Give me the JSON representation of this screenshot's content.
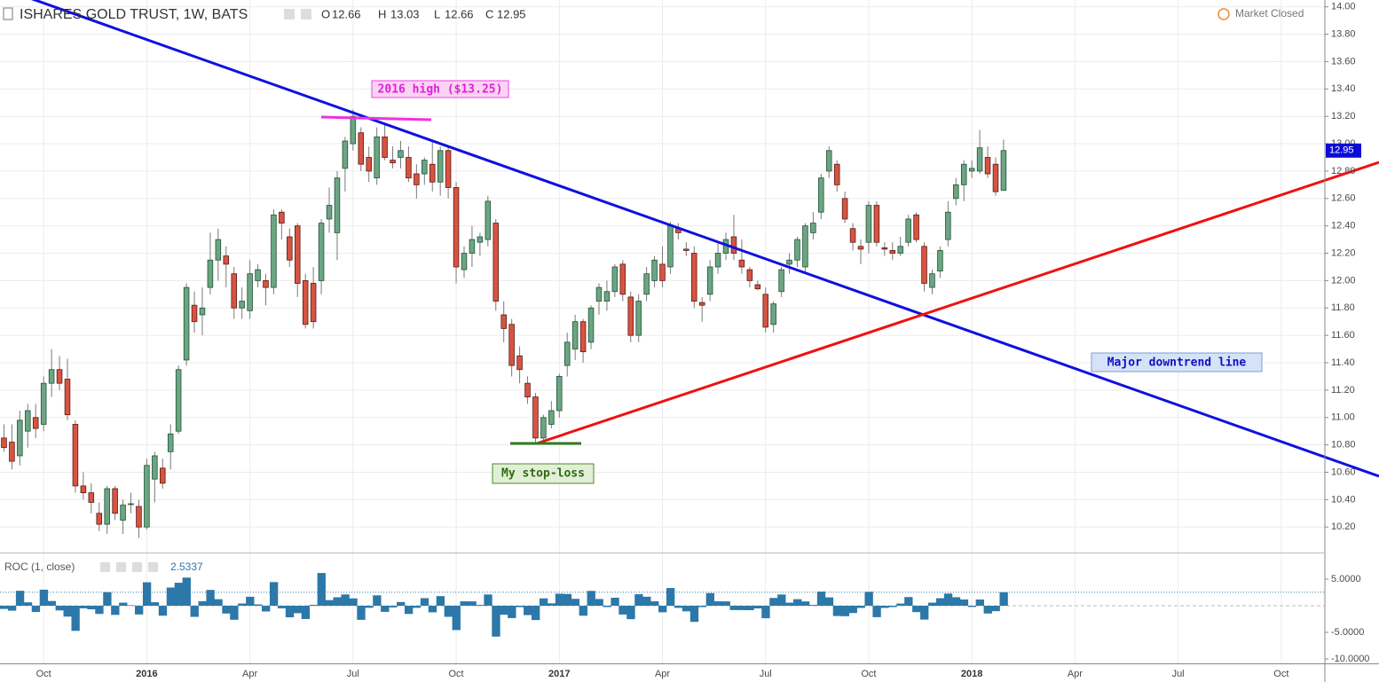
{
  "chart_data": [
    {
      "type": "candlestick",
      "title": "ISHARES GOLD TRUST, 1W, BATS",
      "market_status": "Market Closed",
      "ohlc_labels": [
        "O",
        "H",
        "L",
        "C"
      ],
      "annotations": [
        "2016 high ($13.25)",
        "My stop-loss",
        "Major downtrend line"
      ],
      "up_color": "#6ba583",
      "down_color": "#d75442",
      "grid": true,
      "ylim": [
        10.02,
        14.05
      ],
      "yticks": [
        {
          "value": 10.2,
          "label": "10.20"
        },
        {
          "value": 10.4,
          "label": "10.40"
        },
        {
          "value": 10.6,
          "label": "10.60"
        },
        {
          "value": 10.8,
          "label": "10.80"
        },
        {
          "value": 11,
          "label": "11.00"
        },
        {
          "value": 11.2,
          "label": "11.20"
        },
        {
          "value": 11.4,
          "label": "11.40"
        },
        {
          "value": 11.6,
          "label": "11.60"
        },
        {
          "value": 11.8,
          "label": "11.80"
        },
        {
          "value": 12,
          "label": "12.00"
        },
        {
          "value": 12.2,
          "label": "12.20"
        },
        {
          "value": 12.4,
          "label": "12.40"
        },
        {
          "value": 12.6,
          "label": "12.60"
        },
        {
          "value": 12.8,
          "label": "12.80"
        },
        {
          "value": 13,
          "label": "13.00"
        },
        {
          "value": 13.2,
          "label": "13.20"
        },
        {
          "value": 13.4,
          "label": "13.40"
        },
        {
          "value": 13.6,
          "label": "13.60"
        },
        {
          "value": 13.8,
          "label": "13.80"
        },
        {
          "value": 14,
          "label": "14.00"
        }
      ],
      "categories": [
        null,
        null,
        null,
        null,
        null,
        "Oct",
        null,
        null,
        null,
        null,
        null,
        null,
        null,
        null,
        null,
        null,
        null,
        null,
        "2016",
        null,
        null,
        null,
        null,
        null,
        null,
        null,
        null,
        null,
        null,
        null,
        null,
        "Apr",
        null,
        null,
        null,
        null,
        null,
        null,
        null,
        null,
        null,
        null,
        null,
        null,
        "Jul",
        null,
        null,
        null,
        null,
        null,
        null,
        null,
        null,
        null,
        null,
        null,
        null,
        "Oct",
        null,
        null,
        null,
        null,
        null,
        null,
        null,
        null,
        null,
        null,
        null,
        null,
        "2017",
        null,
        null,
        null,
        null,
        null,
        null,
        null,
        null,
        null,
        null,
        null,
        null,
        "Apr",
        null,
        null,
        null,
        null,
        null,
        null,
        null,
        null,
        null,
        null,
        null,
        null,
        "Jul",
        null,
        null,
        null,
        null,
        null,
        null,
        null,
        null,
        null,
        null,
        null,
        null,
        "Oct",
        null,
        null,
        null,
        null,
        null,
        null,
        null,
        null,
        null,
        null,
        null,
        null,
        "2018",
        null,
        null,
        null,
        null,
        null,
        null,
        null,
        null,
        null,
        null,
        null,
        null,
        "Apr",
        null,
        null,
        null,
        null,
        null,
        null,
        null,
        null,
        null,
        null,
        null,
        null,
        "Jul",
        null,
        null,
        null,
        null,
        null,
        null,
        null,
        null,
        null,
        null,
        null,
        null,
        "Oct",
        null,
        null,
        null,
        null,
        null
      ],
      "ohlc": [
        [
          10.85,
          10.95,
          10.75,
          10.78
        ],
        [
          10.82,
          10.95,
          10.62,
          10.68
        ],
        [
          10.72,
          11.05,
          10.65,
          10.98
        ],
        [
          10.9,
          11.1,
          10.78,
          11.05
        ],
        [
          11.0,
          11.1,
          10.85,
          10.92
        ],
        [
          10.95,
          11.3,
          10.9,
          11.25
        ],
        [
          11.25,
          11.5,
          11.15,
          11.35
        ],
        [
          11.35,
          11.45,
          11.2,
          11.25
        ],
        [
          11.28,
          11.43,
          10.98,
          11.02
        ],
        [
          10.95,
          10.98,
          10.45,
          10.5
        ],
        [
          10.5,
          10.6,
          10.4,
          10.45
        ],
        [
          10.45,
          10.52,
          10.3,
          10.38
        ],
        [
          10.3,
          10.38,
          10.17,
          10.22
        ],
        [
          10.22,
          10.5,
          10.15,
          10.48
        ],
        [
          10.48,
          10.5,
          10.25,
          10.3
        ],
        [
          10.25,
          10.4,
          10.15,
          10.36
        ],
        [
          10.37,
          10.45,
          10.3,
          10.37
        ],
        [
          10.35,
          10.4,
          10.12,
          10.2
        ],
        [
          10.2,
          10.7,
          10.18,
          10.65
        ],
        [
          10.55,
          10.75,
          10.38,
          10.72
        ],
        [
          10.63,
          10.7,
          10.48,
          10.52
        ],
        [
          10.75,
          10.95,
          10.62,
          10.88
        ],
        [
          10.9,
          11.38,
          10.88,
          11.35
        ],
        [
          11.42,
          11.98,
          11.38,
          11.95
        ],
        [
          11.82,
          11.92,
          11.62,
          11.7
        ],
        [
          11.75,
          11.95,
          11.6,
          11.8
        ],
        [
          11.95,
          12.35,
          11.9,
          12.15
        ],
        [
          12.15,
          12.38,
          12.0,
          12.3
        ],
        [
          12.18,
          12.25,
          11.95,
          12.12
        ],
        [
          12.05,
          12.1,
          11.72,
          11.8
        ],
        [
          11.8,
          11.95,
          11.72,
          11.85
        ],
        [
          11.78,
          12.15,
          11.72,
          12.05
        ],
        [
          12.0,
          12.12,
          11.95,
          12.08
        ],
        [
          12.0,
          12.05,
          11.82,
          11.95
        ],
        [
          11.95,
          12.52,
          11.9,
          12.48
        ],
        [
          12.5,
          12.52,
          12.3,
          12.42
        ],
        [
          12.32,
          12.38,
          12.1,
          12.15
        ],
        [
          12.4,
          12.42,
          11.88,
          11.98
        ],
        [
          12.0,
          12.05,
          11.65,
          11.68
        ],
        [
          11.98,
          12.1,
          11.65,
          11.7
        ],
        [
          12.0,
          12.45,
          11.9,
          12.42
        ],
        [
          12.45,
          12.68,
          12.35,
          12.55
        ],
        [
          12.35,
          12.8,
          12.15,
          12.75
        ],
        [
          12.82,
          13.05,
          12.65,
          13.02
        ],
        [
          13.0,
          13.25,
          12.95,
          13.2
        ],
        [
          13.08,
          13.12,
          12.8,
          12.85
        ],
        [
          12.9,
          12.98,
          12.72,
          12.8
        ],
        [
          12.75,
          13.12,
          12.7,
          13.05
        ],
        [
          13.05,
          13.15,
          12.88,
          12.9
        ],
        [
          12.88,
          12.98,
          12.82,
          12.86
        ],
        [
          12.9,
          13.02,
          12.82,
          12.95
        ],
        [
          12.9,
          12.98,
          12.72,
          12.75
        ],
        [
          12.78,
          12.85,
          12.6,
          12.7
        ],
        [
          12.78,
          12.9,
          12.7,
          12.88
        ],
        [
          12.85,
          13.02,
          12.65,
          12.72
        ],
        [
          12.72,
          12.98,
          12.62,
          12.95
        ],
        [
          12.95,
          12.98,
          12.6,
          12.68
        ],
        [
          12.68,
          12.72,
          11.98,
          12.1
        ],
        [
          12.08,
          12.25,
          12.02,
          12.2
        ],
        [
          12.2,
          12.4,
          12.1,
          12.3
        ],
        [
          12.28,
          12.35,
          12.18,
          12.32
        ],
        [
          12.3,
          12.62,
          12.25,
          12.58
        ],
        [
          12.42,
          12.45,
          11.78,
          11.85
        ],
        [
          11.75,
          11.85,
          11.55,
          11.65
        ],
        [
          11.68,
          11.72,
          11.3,
          11.38
        ],
        [
          11.45,
          11.52,
          11.25,
          11.35
        ],
        [
          11.25,
          11.3,
          11.1,
          11.15
        ],
        [
          11.15,
          11.18,
          10.82,
          10.85
        ],
        [
          10.85,
          11.02,
          10.8,
          11.0
        ],
        [
          10.95,
          11.12,
          10.92,
          11.05
        ],
        [
          11.05,
          11.32,
          11.0,
          11.3
        ],
        [
          11.38,
          11.62,
          11.3,
          11.55
        ],
        [
          11.5,
          11.75,
          11.42,
          11.7
        ],
        [
          11.7,
          11.72,
          11.4,
          11.48
        ],
        [
          11.55,
          11.82,
          11.5,
          11.8
        ],
        [
          11.85,
          11.98,
          11.75,
          11.95
        ],
        [
          11.85,
          12.0,
          11.78,
          11.92
        ],
        [
          11.92,
          12.12,
          11.88,
          12.1
        ],
        [
          12.12,
          12.15,
          11.85,
          11.9
        ],
        [
          11.88,
          11.92,
          11.55,
          11.6
        ],
        [
          11.6,
          11.9,
          11.55,
          11.85
        ],
        [
          11.9,
          12.1,
          11.85,
          12.05
        ],
        [
          12.0,
          12.18,
          11.95,
          12.15
        ],
        [
          12.12,
          12.25,
          11.95,
          12.0
        ],
        [
          12.1,
          12.43,
          12.05,
          12.4
        ],
        [
          12.38,
          12.42,
          12.3,
          12.35
        ],
        [
          12.23,
          12.28,
          12.18,
          12.22
        ],
        [
          12.2,
          12.25,
          11.8,
          11.85
        ],
        [
          11.84,
          11.88,
          11.7,
          11.82
        ],
        [
          11.9,
          12.15,
          11.85,
          12.1
        ],
        [
          12.1,
          12.28,
          12.05,
          12.2
        ],
        [
          12.2,
          12.35,
          12.15,
          12.3
        ],
        [
          12.32,
          12.48,
          12.15,
          12.2
        ],
        [
          12.15,
          12.3,
          12.05,
          12.1
        ],
        [
          12.08,
          12.1,
          11.95,
          12.0
        ],
        [
          11.97,
          12.0,
          11.93,
          11.94
        ],
        [
          11.9,
          11.95,
          11.62,
          11.66
        ],
        [
          11.68,
          11.85,
          11.62,
          11.83
        ],
        [
          11.92,
          12.1,
          11.88,
          12.08
        ],
        [
          12.12,
          12.2,
          12.05,
          12.15
        ],
        [
          12.15,
          12.32,
          12.1,
          12.3
        ],
        [
          12.1,
          12.42,
          12.05,
          12.4
        ],
        [
          12.35,
          12.5,
          12.3,
          12.42
        ],
        [
          12.5,
          12.78,
          12.45,
          12.75
        ],
        [
          12.8,
          12.98,
          12.75,
          12.95
        ],
        [
          12.85,
          12.88,
          12.65,
          12.7
        ],
        [
          12.6,
          12.65,
          12.42,
          12.45
        ],
        [
          12.38,
          12.42,
          12.22,
          12.28
        ],
        [
          12.25,
          12.3,
          12.12,
          12.23
        ],
        [
          12.28,
          12.58,
          12.2,
          12.55
        ],
        [
          12.55,
          12.58,
          12.25,
          12.28
        ],
        [
          12.24,
          12.28,
          12.18,
          12.23
        ],
        [
          12.22,
          12.28,
          12.15,
          12.2
        ],
        [
          12.2,
          12.32,
          12.18,
          12.25
        ],
        [
          12.28,
          12.48,
          12.25,
          12.45
        ],
        [
          12.48,
          12.5,
          12.28,
          12.3
        ],
        [
          12.25,
          12.28,
          11.92,
          11.98
        ],
        [
          11.95,
          12.08,
          11.9,
          12.05
        ],
        [
          12.07,
          12.25,
          12.02,
          12.22
        ],
        [
          12.3,
          12.58,
          12.25,
          12.5
        ],
        [
          12.6,
          12.75,
          12.55,
          12.7
        ],
        [
          12.7,
          12.88,
          12.58,
          12.85
        ],
        [
          12.8,
          12.88,
          12.75,
          12.82
        ],
        [
          12.8,
          13.1,
          12.78,
          12.97
        ],
        [
          12.9,
          12.98,
          12.75,
          12.78
        ],
        [
          12.85,
          12.9,
          12.62,
          12.65
        ],
        [
          12.66,
          13.03,
          12.66,
          12.95
        ],
        null,
        null,
        null,
        null,
        null,
        null,
        null,
        null,
        null,
        null,
        null,
        null,
        null,
        null,
        null,
        null,
        null,
        null,
        null,
        null,
        null,
        null,
        null,
        null,
        null,
        null,
        null,
        null,
        null,
        null,
        null,
        null,
        null,
        null,
        null,
        null,
        null,
        null,
        null,
        null
      ]
    },
    {
      "type": "bar",
      "title": "ROC (1, close)",
      "color": "#2c78a8",
      "grid": false,
      "ylim": [
        -10.83,
        9.5
      ],
      "yticks": [
        {
          "value": 5,
          "label": "5.0000"
        },
        {
          "value": -5,
          "label": "-5.0000"
        },
        {
          "value": -10,
          "label": "-10.0000"
        }
      ],
      "values": [
        -0.6,
        -0.93,
        2.81,
        0.64,
        -1.18,
        3.02,
        0.89,
        -0.88,
        -2.04,
        -4.72,
        -0.48,
        -0.67,
        -1.54,
        2.54,
        -1.72,
        0.58,
        0.1,
        -1.64,
        4.41,
        0.66,
        -1.87,
        3.42,
        4.32,
        5.29,
        -2.09,
        0.85,
        2.97,
        1.23,
        -1.46,
        -2.64,
        0.42,
        1.69,
        0.25,
        -1.08,
        4.44,
        -0.48,
        -2.17,
        -1.4,
        -2.5,
        0.17,
        6.15,
        1.05,
        1.59,
        2.12,
        1.38,
        -2.65,
        -0.39,
        1.95,
        -1.15,
        -0.31,
        0.7,
        -1.54,
        -0.39,
        1.42,
        -1.24,
        1.81,
        -2.08,
        -4.57,
        0.83,
        0.82,
        0.16,
        2.11,
        -5.8,
        -1.69,
        -2.32,
        -0.26,
        -1.76,
        -2.69,
        1.38,
        0.45,
        2.26,
        2.21,
        1.3,
        -1.88,
        2.79,
        1.27,
        -0.25,
        1.51,
        -1.65,
        -2.52,
        2.16,
        1.69,
        0.83,
        -1.23,
        3.33,
        -0.4,
        -1.05,
        -3.03,
        -0.25,
        2.37,
        0.83,
        0.82,
        -0.81,
        -0.82,
        -0.83,
        -0.5,
        -2.35,
        1.46,
        2.11,
        0.58,
        1.23,
        0.81,
        0.16,
        2.66,
        1.57,
        -1.93,
        -1.97,
        -1.37,
        -0.41,
        2.62,
        -2.15,
        -0.41,
        -0.25,
        0.41,
        1.63,
        -1.2,
        -2.6,
        0.58,
        1.41,
        2.29,
        1.6,
        1.18,
        -0.23,
        1.17,
        -1.46,
        -1.02,
        2.5337,
        null,
        null,
        null,
        null,
        null,
        null,
        null,
        null,
        null,
        null,
        null,
        null,
        null,
        null,
        null,
        null,
        null,
        null,
        null,
        null,
        null,
        null,
        null,
        null,
        null,
        null,
        null,
        null,
        null,
        null,
        null,
        null,
        null,
        null,
        null,
        null,
        null,
        null,
        null,
        null
      ]
    }
  ]
}
